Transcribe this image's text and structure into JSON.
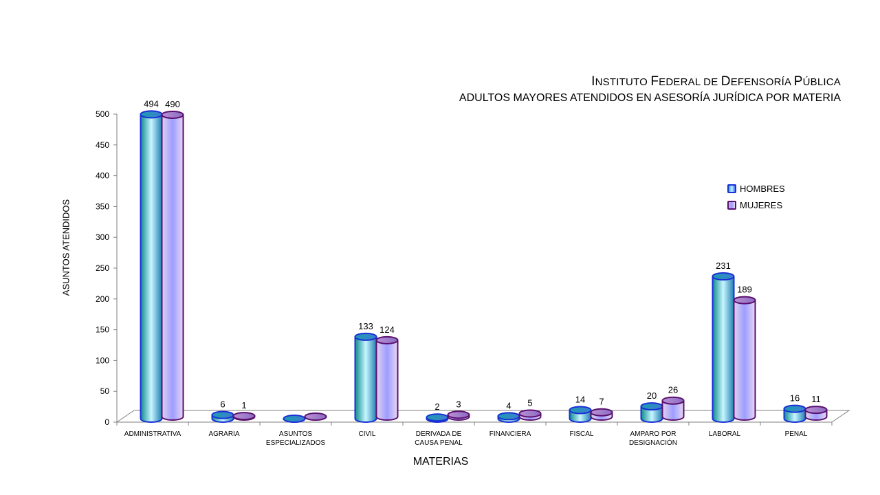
{
  "title": {
    "line1_parts": [
      {
        "text": "I",
        "big": true
      },
      {
        "text": "NSTITUTO ",
        "big": false
      },
      {
        "text": "F",
        "big": true
      },
      {
        "text": "EDERAL DE ",
        "big": false
      },
      {
        "text": "D",
        "big": true
      },
      {
        "text": "EFENSORÍA ",
        "big": false
      },
      {
        "text": "P",
        "big": true
      },
      {
        "text": "ÚBLICA",
        "big": false
      }
    ],
    "line2": "ADULTOS MAYORES ATENDIDOS EN ASESORÍA JURÍDICA POR MATERIA"
  },
  "legend": {
    "men": "HOMBRES",
    "women": "MUJERES"
  },
  "colors": {
    "men_border": "#1a2fd6",
    "men_dark": "#0f8f94",
    "men_light": "#c8f6ff",
    "women_border": "#5a0f6e",
    "women_left": "#d9c4ea",
    "women_mid": "#9b9bff",
    "axis": "#7f7f7f"
  },
  "chart_data": {
    "type": "bar",
    "title": "ADULTOS MAYORES ATENDIDOS EN ASESORÍA JURÍDICA POR MATERIA",
    "xlabel": "MATERIAS",
    "ylabel": "ASUNTOS ATENDIDOS",
    "ylim": [
      0,
      500
    ],
    "yticks": [
      0,
      50,
      100,
      150,
      200,
      250,
      300,
      350,
      400,
      450,
      500
    ],
    "categories": [
      [
        "ADMINISTRATIVA"
      ],
      [
        "AGRARIA"
      ],
      [
        "ASUNTOS",
        "ESPECIALIZADOS"
      ],
      [
        "CIVIL"
      ],
      [
        "DERIVADA DE",
        "CAUSA PENAL"
      ],
      [
        "FINANCIERA"
      ],
      [
        "FISCAL"
      ],
      [
        "AMPARO POR",
        "DESIGNACIÓN"
      ],
      [
        "LABORAL"
      ],
      [
        "PENAL"
      ]
    ],
    "series": [
      {
        "name": "HOMBRES",
        "values": [
          494,
          6,
          null,
          133,
          2,
          4,
          14,
          20,
          231,
          16
        ]
      },
      {
        "name": "MUJERES",
        "values": [
          490,
          1,
          null,
          124,
          3,
          5,
          7,
          26,
          189,
          11
        ]
      }
    ],
    "style": "3d-cylinder",
    "grid": false,
    "legend_position": "right"
  }
}
